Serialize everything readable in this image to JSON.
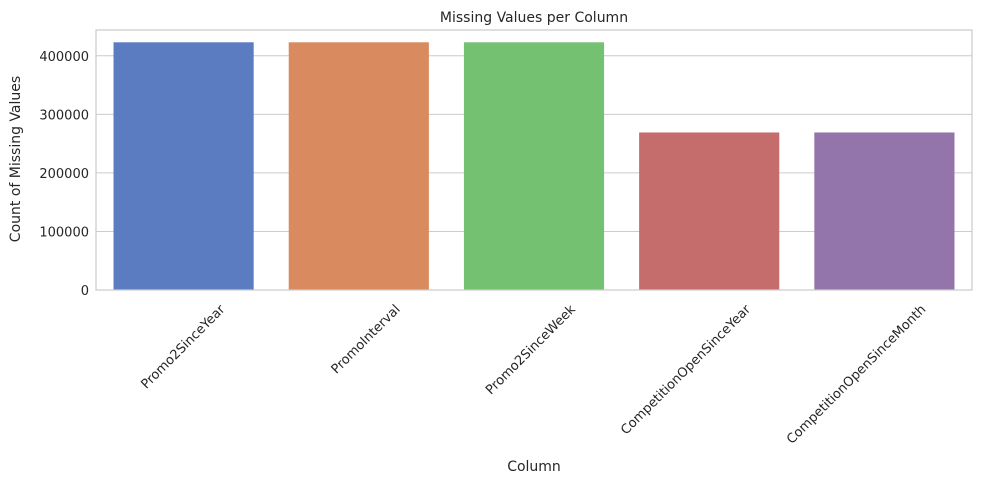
{
  "chart_data": {
    "type": "bar",
    "title": "Missing Values per Column",
    "xlabel": "Column",
    "ylabel": "Count of Missing Values",
    "categories": [
      "Promo2SinceYear",
      "PromoInterval",
      "Promo2SinceWeek",
      "CompetitionOpenSinceYear",
      "CompetitionOpenSinceMonth"
    ],
    "values": [
      423000,
      423000,
      423000,
      269000,
      269000
    ],
    "colors": [
      "#5b7cc0",
      "#d98a5e",
      "#74c172",
      "#c56d6d",
      "#9374ab"
    ],
    "ylim": [
      0,
      444000
    ],
    "yticks": [
      0,
      100000,
      200000,
      300000,
      400000
    ],
    "grid": true,
    "legend": "none"
  }
}
